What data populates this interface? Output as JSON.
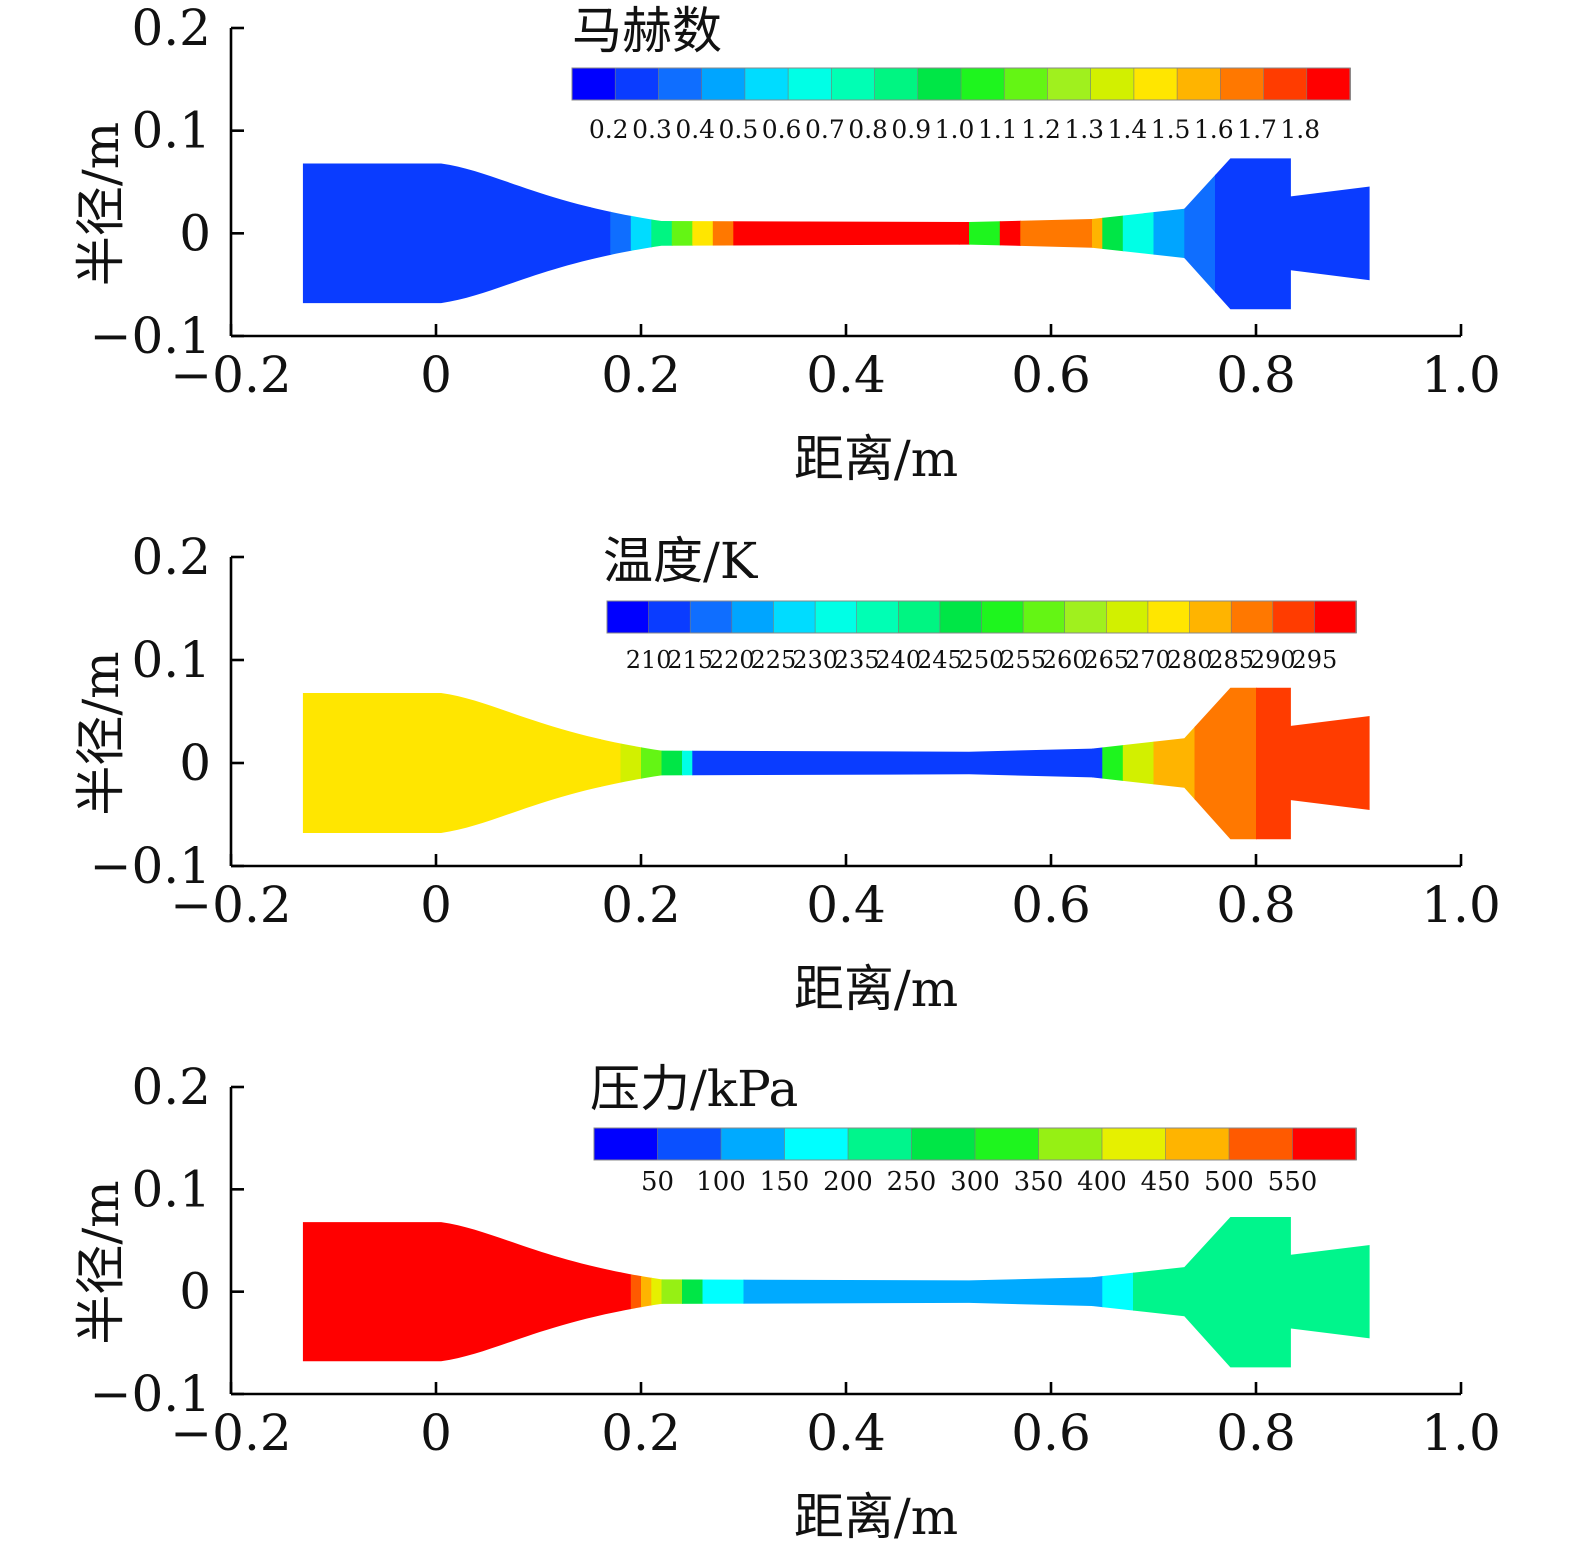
{
  "chart_data": [
    {
      "type": "heatmap",
      "title": "",
      "xlabel": "距离/m",
      "ylabel": "半径/m",
      "xlim": [
        -0.2,
        1.0
      ],
      "ylim": [
        -0.1,
        0.2
      ],
      "x_ticks": [
        "−0.2",
        "0",
        "0.2",
        "0.4",
        "0.6",
        "0.8",
        "1.0"
      ],
      "y_ticks": [
        "0.2",
        "0.1",
        "0",
        "−0.1"
      ],
      "colorbar": {
        "title": "马赫数",
        "labels": [
          "0.2",
          "0.3",
          "0.4",
          "0.5",
          "0.6",
          "0.7",
          "0.8",
          "0.9",
          "1.0",
          "1.1",
          "1.2",
          "1.3",
          "1.4",
          "1.5",
          "1.6",
          "1.7",
          "1.8"
        ],
        "colors": [
          "#0000ff",
          "#0a3cff",
          "#0f6eff",
          "#00a5ff",
          "#00dcff",
          "#00ffe6",
          "#00ffb4",
          "#00f582",
          "#00e646",
          "#1ef51e",
          "#64f514",
          "#a0f01e",
          "#d2f000",
          "#ffe600",
          "#ffb400",
          "#ff7800",
          "#ff3c00",
          "#ff0000"
        ]
      },
      "field_profile": [
        {
          "x": -0.13,
          "value": 0.2
        },
        {
          "x": 0.15,
          "value": 0.2
        },
        {
          "x": 0.17,
          "value": 0.3
        },
        {
          "x": 0.19,
          "value": 0.5
        },
        {
          "x": 0.21,
          "value": 0.8
        },
        {
          "x": 0.23,
          "value": 1.1
        },
        {
          "x": 0.25,
          "value": 1.4
        },
        {
          "x": 0.27,
          "value": 1.6
        },
        {
          "x": 0.29,
          "value": 1.8
        },
        {
          "x": 0.51,
          "value": 1.8
        },
        {
          "x": 0.52,
          "value": 1.0
        },
        {
          "x": 0.55,
          "value": 1.8
        },
        {
          "x": 0.57,
          "value": 1.6
        },
        {
          "x": 0.64,
          "value": 1.5
        },
        {
          "x": 0.65,
          "value": 0.9
        },
        {
          "x": 0.67,
          "value": 0.6
        },
        {
          "x": 0.7,
          "value": 0.4
        },
        {
          "x": 0.73,
          "value": 0.3
        },
        {
          "x": 0.76,
          "value": 0.2
        },
        {
          "x": 0.91,
          "value": 0.2
        }
      ]
    },
    {
      "type": "heatmap",
      "title": "",
      "xlabel": "距离/m",
      "ylabel": "半径/m",
      "xlim": [
        -0.2,
        1.0
      ],
      "ylim": [
        -0.1,
        0.2
      ],
      "x_ticks": [
        "−0.2",
        "0",
        "0.2",
        "0.4",
        "0.6",
        "0.8",
        "1.0"
      ],
      "y_ticks": [
        "0.2",
        "0.1",
        "0",
        "−0.1"
      ],
      "colorbar": {
        "title": "温度/K",
        "labels": [
          "210",
          "215",
          "220",
          "225",
          "230",
          "235",
          "240",
          "245",
          "250",
          "255",
          "260",
          "265",
          "270",
          "280",
          "285",
          "290",
          "295"
        ],
        "colors": [
          "#0000ff",
          "#0a3cff",
          "#0f6eff",
          "#00a5ff",
          "#00dcff",
          "#00ffe6",
          "#00ffb4",
          "#00f582",
          "#00e646",
          "#1ef51e",
          "#64f514",
          "#a0f01e",
          "#d2f000",
          "#ffe600",
          "#ffb400",
          "#ff7800",
          "#ff3c00",
          "#ff0000"
        ]
      },
      "field_profile": [
        {
          "x": -0.13,
          "value": 270
        },
        {
          "x": 0.16,
          "value": 270
        },
        {
          "x": 0.18,
          "value": 265
        },
        {
          "x": 0.2,
          "value": 255
        },
        {
          "x": 0.22,
          "value": 245
        },
        {
          "x": 0.24,
          "value": 230
        },
        {
          "x": 0.25,
          "value": 210
        },
        {
          "x": 0.64,
          "value": 210
        },
        {
          "x": 0.65,
          "value": 250
        },
        {
          "x": 0.67,
          "value": 265
        },
        {
          "x": 0.7,
          "value": 280
        },
        {
          "x": 0.74,
          "value": 285
        },
        {
          "x": 0.8,
          "value": 290
        },
        {
          "x": 0.91,
          "value": 290
        }
      ]
    },
    {
      "type": "heatmap",
      "title": "",
      "xlabel": "距离/m",
      "ylabel": "半径/m",
      "xlim": [
        -0.2,
        1.0
      ],
      "ylim": [
        -0.1,
        0.2
      ],
      "x_ticks": [
        "−0.2",
        "0",
        "0.2",
        "0.4",
        "0.6",
        "0.8",
        "1.0"
      ],
      "y_ticks": [
        "0.2",
        "0.1",
        "0",
        "−0.1"
      ],
      "colorbar": {
        "title": "压力/kPa",
        "labels": [
          "50",
          "100",
          "150",
          "200",
          "250",
          "300",
          "350",
          "400",
          "450",
          "500",
          "550"
        ],
        "colors": [
          "#0000ff",
          "#0a50ff",
          "#00aaff",
          "#00ffff",
          "#00f58c",
          "#00e646",
          "#1ef51e",
          "#96f014",
          "#e6f000",
          "#ffb400",
          "#ff5a00",
          "#ff0000"
        ]
      },
      "field_profile": [
        {
          "x": -0.13,
          "value": 580
        },
        {
          "x": 0.18,
          "value": 580
        },
        {
          "x": 0.19,
          "value": 520
        },
        {
          "x": 0.2,
          "value": 470
        },
        {
          "x": 0.21,
          "value": 420
        },
        {
          "x": 0.22,
          "value": 350
        },
        {
          "x": 0.24,
          "value": 250
        },
        {
          "x": 0.26,
          "value": 180
        },
        {
          "x": 0.3,
          "value": 110
        },
        {
          "x": 0.64,
          "value": 110
        },
        {
          "x": 0.65,
          "value": 180
        },
        {
          "x": 0.68,
          "value": 230
        },
        {
          "x": 0.91,
          "value": 240
        }
      ]
    }
  ]
}
